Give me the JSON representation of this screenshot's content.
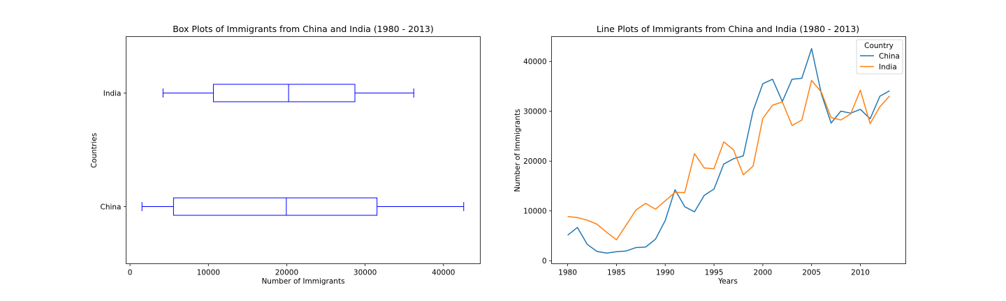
{
  "chart_data": [
    {
      "type": "box",
      "orientation": "horizontal",
      "title": "Box Plots of Immigrants from China and India (1980 - 2013)",
      "xlabel": "Number of Immigrants",
      "ylabel": "Countries",
      "xlim": [
        -500,
        44700
      ],
      "xticks": [
        0,
        10000,
        20000,
        30000,
        40000
      ],
      "grid": false,
      "color": "#0000ff",
      "boxes": [
        {
          "name": "China",
          "whisker_low": 1527,
          "q1": 5550,
          "median": 19945,
          "q3": 31520,
          "whisker_high": 42584
        },
        {
          "name": "India",
          "whisker_low": 4211,
          "q1": 10640,
          "median": 20235,
          "q3": 28700,
          "whisker_high": 36210
        }
      ]
    },
    {
      "type": "line",
      "title": "Line Plots of Immigrants from China and India (1980 - 2013)",
      "xlabel": "Years",
      "ylabel": "Number of Immigrants",
      "xlim": [
        1978.35,
        2014.65
      ],
      "ylim": [
        -600,
        45000
      ],
      "xticks": [
        1980,
        1985,
        1990,
        1995,
        2000,
        2005,
        2010
      ],
      "yticks": [
        0,
        10000,
        20000,
        30000,
        40000
      ],
      "grid": false,
      "legend": {
        "title": "Country",
        "position": "top-right"
      },
      "x": [
        1980,
        1981,
        1982,
        1983,
        1984,
        1985,
        1986,
        1987,
        1988,
        1989,
        1990,
        1991,
        1992,
        1993,
        1994,
        1995,
        1996,
        1997,
        1998,
        1999,
        2000,
        2001,
        2002,
        2003,
        2004,
        2005,
        2006,
        2007,
        2008,
        2009,
        2010,
        2011,
        2012,
        2013
      ],
      "series": [
        {
          "name": "China",
          "color": "#1f77b4",
          "values": [
            5123,
            6682,
            3308,
            1863,
            1527,
            1816,
            1960,
            2643,
            2758,
            4323,
            8076,
            14255,
            10846,
            9817,
            13128,
            14398,
            19415,
            20475,
            21049,
            30069,
            35529,
            36434,
            31961,
            36439,
            36619,
            42584,
            33518,
            27642,
            30037,
            29622,
            30391,
            28502,
            33024,
            34129
          ]
        },
        {
          "name": "India",
          "color": "#ff7f0e",
          "values": [
            8880,
            8670,
            8147,
            7338,
            5704,
            4211,
            7150,
            10189,
            11522,
            10343,
            12041,
            13734,
            13673,
            21496,
            18620,
            18489,
            23859,
            22268,
            17241,
            18974,
            28572,
            31223,
            31889,
            27155,
            28235,
            36210,
            33848,
            28742,
            28261,
            29456,
            34235,
            27509,
            30933,
            33087
          ]
        }
      ]
    }
  ]
}
